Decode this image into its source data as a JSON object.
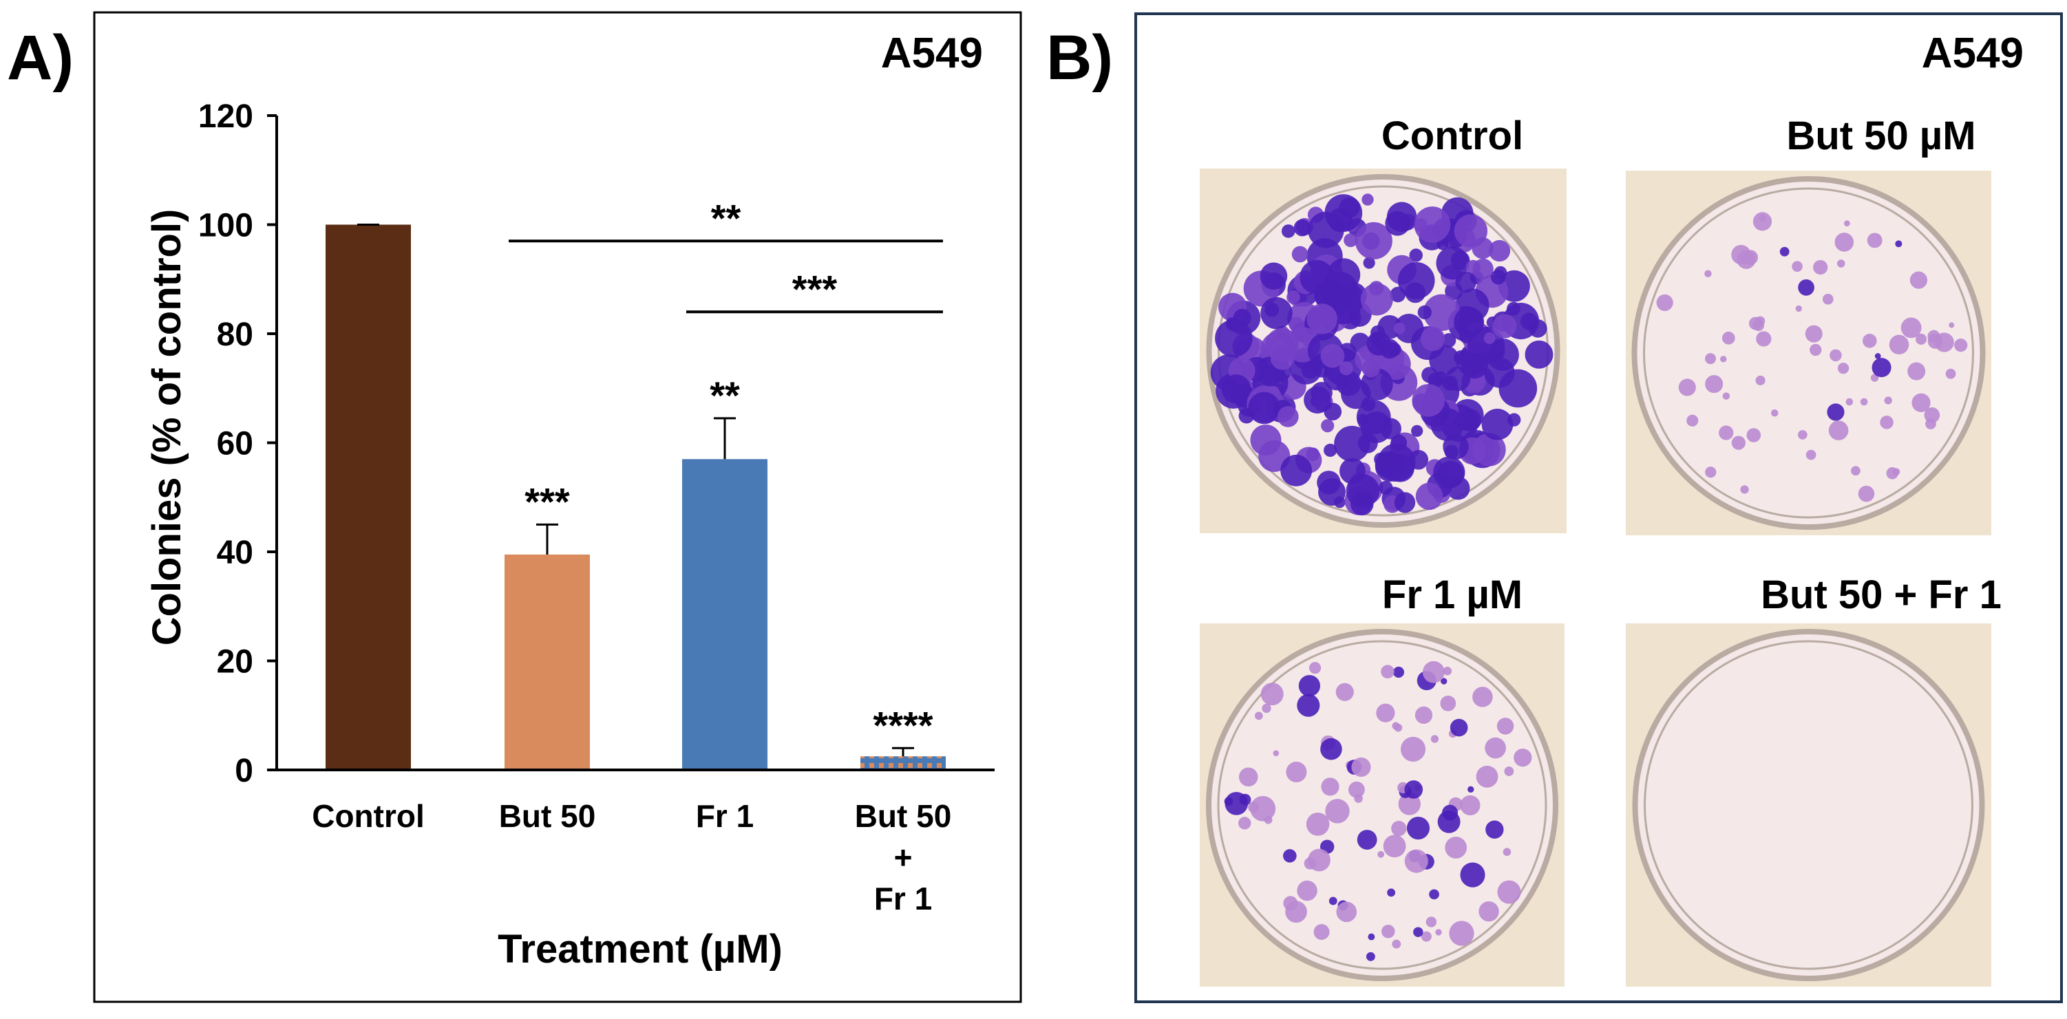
{
  "panel_a": {
    "label": "A)",
    "cell_line": "A549",
    "chart_data": {
      "type": "bar",
      "title": "A549",
      "xlabel": "Treatment (µM)",
      "ylabel": "Colonies (% of control)",
      "ylim": [
        0,
        120
      ],
      "yticks": [
        0,
        20,
        40,
        60,
        80,
        100,
        120
      ],
      "grid": false,
      "categories": [
        {
          "id": "control",
          "lines": [
            "Control"
          ]
        },
        {
          "id": "but50",
          "lines": [
            "But 50"
          ]
        },
        {
          "id": "fr1",
          "lines": [
            "Fr 1"
          ]
        },
        {
          "id": "combo",
          "lines": [
            "But 50",
            "+",
            "Fr 1"
          ]
        }
      ],
      "values": [
        100,
        39.5,
        57,
        2.5
      ],
      "errors": [
        0,
        5.5,
        7.5,
        1.5
      ],
      "colors": [
        "#5a2d14",
        "#d98b5e",
        "#4a7ab5",
        "#4a7ab5"
      ],
      "combo_dot_color": "#d98b5e",
      "significance_labels": [
        "",
        "***",
        "**",
        "****"
      ],
      "brackets": [
        {
          "from": 1,
          "to": 3,
          "y": 97,
          "label": "**"
        },
        {
          "from": 2,
          "to": 3,
          "y": 84,
          "label": "***"
        }
      ]
    }
  },
  "panel_b": {
    "label": "B)",
    "cell_line": "A549",
    "wells": [
      {
        "id": "control",
        "title": "Control",
        "density": "high"
      },
      {
        "id": "but50",
        "title": "But 50 µM",
        "density": "low"
      },
      {
        "id": "fr1",
        "title": "Fr 1 µM",
        "density": "medium"
      },
      {
        "id": "combo",
        "title": "But 50 + Fr 1",
        "density": "none"
      }
    ],
    "colors": {
      "background": "#efe2cf",
      "well_fill": "#f4e8e8",
      "well_rim": "#b9aaa2",
      "colony_dark": "#4a1fb8",
      "colony_mid": "#7440c8",
      "colony_light": "#b98ad2"
    }
  }
}
